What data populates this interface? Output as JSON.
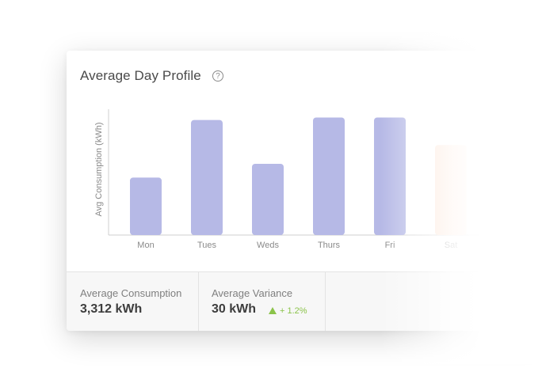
{
  "card": {
    "title": "Average Day Profile",
    "help_icon": "question-circle-icon"
  },
  "chart_data": {
    "type": "bar",
    "ylabel": "Avg Consumption (kWh)",
    "xlabel": "",
    "categories": [
      "Mon",
      "Tues",
      "Weds",
      "Thurs",
      "Fri",
      "Sat"
    ],
    "values": [
      46,
      92,
      57,
      94,
      94,
      72
    ],
    "ylim": [
      0,
      100
    ],
    "grid": false,
    "colors": {
      "bar": "#b6b9e6",
      "highlight": "#fde3d3",
      "axis": "#cfcfcf",
      "tick": "#8a8a8a"
    }
  },
  "stats": {
    "avg_consumption_label": "Average Consumption",
    "avg_consumption_value": "3,312 kWh",
    "avg_variance_label": "Average Variance",
    "avg_variance_value": "30 kWh",
    "avg_variance_change": "+ 1.2%",
    "change_icon": "triangle-up-icon",
    "colors": {
      "positive": "#8bc34a"
    }
  }
}
